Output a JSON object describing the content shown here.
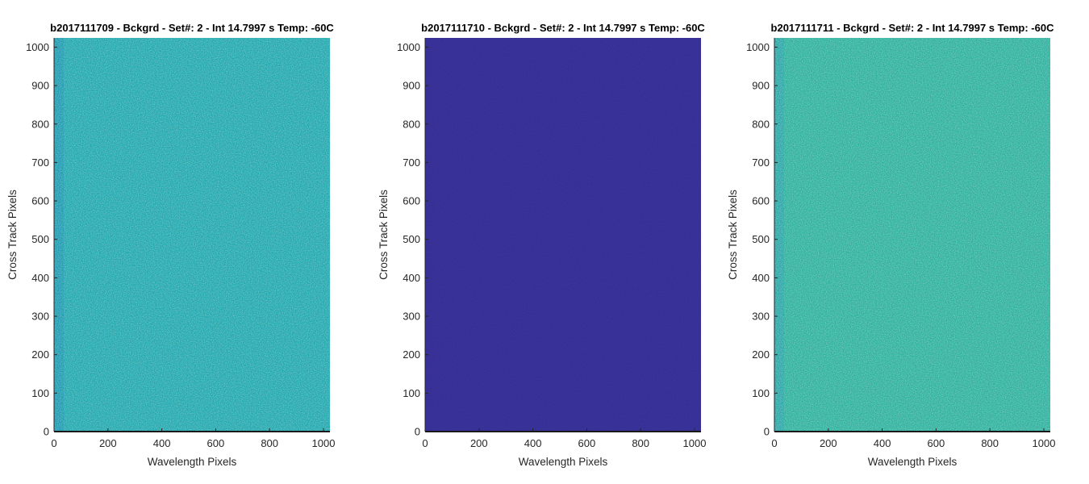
{
  "chart_data": [
    {
      "type": "heatmap",
      "title": "b2017111709 - Bckgrd - Set#: 2 - Int 14.7997 s Temp: -60C",
      "xlabel": "Wavelength Pixels",
      "ylabel": "Cross Track Pixels",
      "xlim": [
        0,
        1024
      ],
      "ylim": [
        0,
        1024
      ],
      "xticks": [
        0,
        200,
        400,
        600,
        800,
        1000
      ],
      "yticks": [
        0,
        100,
        200,
        300,
        400,
        500,
        600,
        700,
        800,
        900,
        1000
      ],
      "fill_color": "#21a8ae",
      "noise_color": "#5ec88a",
      "edge_color": "#1e8fb4",
      "grid": false
    },
    {
      "type": "heatmap",
      "title": "b2017111710 - Bckgrd - Set#: 2 - Int 14.7997 s Temp: -60C",
      "xlabel": "Wavelength Pixels",
      "ylabel": "Cross Track Pixels",
      "xlim": [
        0,
        1024
      ],
      "ylim": [
        0,
        1024
      ],
      "xticks": [
        0,
        200,
        400,
        600,
        800,
        1000
      ],
      "yticks": [
        0,
        100,
        200,
        300,
        400,
        500,
        600,
        700,
        800,
        900,
        1000
      ],
      "fill_color": "#352f96",
      "noise_color": "#3a3a9e",
      "edge_color": "#352f96",
      "grid": false
    },
    {
      "type": "heatmap",
      "title": "b2017111711 - Bckgrd - Set#: 2 - Int 14.7997 s Temp: -60C",
      "xlabel": "Wavelength Pixels",
      "ylabel": "Cross Track Pixels",
      "xlim": [
        0,
        1024
      ],
      "ylim": [
        0,
        1024
      ],
      "xticks": [
        0,
        200,
        400,
        600,
        800,
        1000
      ],
      "yticks": [
        0,
        100,
        200,
        300,
        400,
        500,
        600,
        700,
        800,
        900,
        1000
      ],
      "fill_color": "#2eb19e",
      "noise_color": "#7cc873",
      "edge_color": "#2a9fb0",
      "grid": false
    }
  ]
}
